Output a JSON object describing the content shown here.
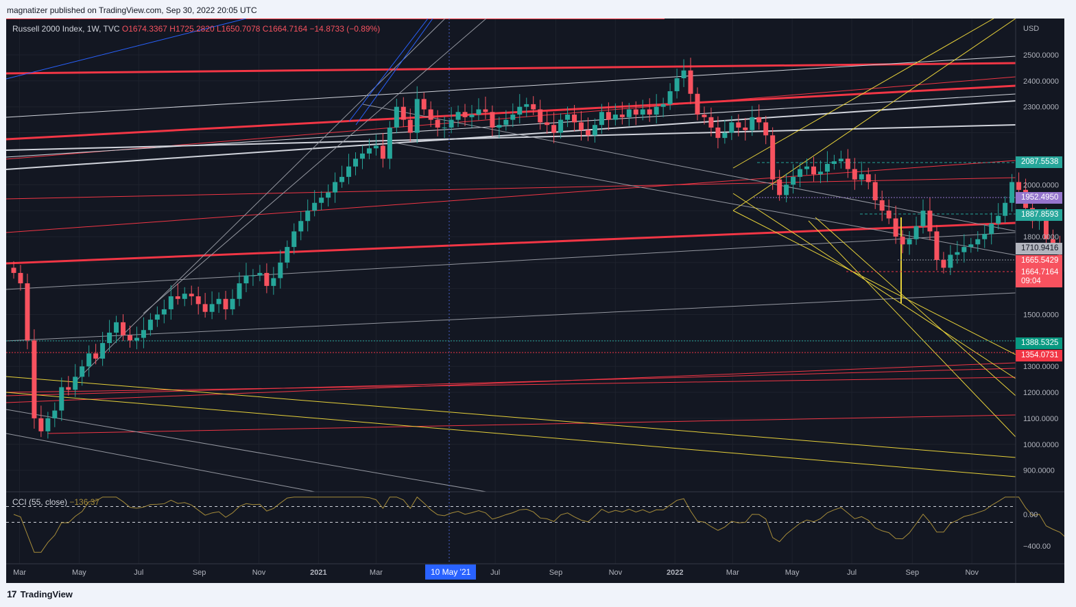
{
  "publisher": "magnatizer published on TradingView.com, Sep 30, 2022 20:05 UTC",
  "legend": {
    "symbol": "Russell 2000 Index, 1W, TVC",
    "open": "O1674.3367",
    "high": "H1725.2820",
    "low": "L1650.7078",
    "close": "C1664.7164",
    "change": "−14.8733 (−0.89%)"
  },
  "cci": {
    "label": "CCI (55, close)",
    "value": "−136.37"
  },
  "axis": {
    "currency": "USD"
  },
  "price_labels": [
    {
      "text": "2087.5538",
      "color": "#26a69a",
      "text_color": "#ffffff"
    },
    {
      "text": "1952.4950",
      "color": "#9575cd",
      "text_color": "#ffffff"
    },
    {
      "text": "1887.8593",
      "color": "#26a69a",
      "text_color": "#ffffff"
    },
    {
      "text": "1710.9416",
      "color": "#b2b5be",
      "text_color": "#131722"
    },
    {
      "text": "1665.5429",
      "color": "#f7525f",
      "text_color": "#ffffff"
    },
    {
      "text": "1664.7164",
      "color": "#f7525f",
      "text_color": "#ffffff"
    },
    {
      "text": "09:04",
      "color": "#f7525f",
      "text_color": "#ffffff"
    },
    {
      "text": "1388.5325",
      "color": "#089981",
      "text_color": "#ffffff"
    },
    {
      "text": "1354.0731",
      "color": "#f23645",
      "text_color": "#ffffff"
    }
  ],
  "crosshair_date": "10 May '21",
  "footer": {
    "brand": "TradingView",
    "logo": "tradingview-logo"
  },
  "chart_data": {
    "type": "candlestick",
    "interval": "1W",
    "x_start": "2020-02-24",
    "y_ticks": [
      2500,
      2400,
      2300,
      2200,
      2100,
      2000,
      1900,
      1800,
      1700,
      1600,
      1500,
      1400,
      1300,
      1200,
      1100,
      1000,
      900
    ],
    "y_tick_labels": [
      "2500.0000",
      "2400.0000",
      "2300.0000",
      "",
      "",
      "2000.0000",
      "",
      "1800.0000",
      "",
      "",
      "1500.0000",
      "",
      "1300.0000",
      "1200.0000",
      "1100.0000",
      "1000.0000",
      "900.0000"
    ],
    "x_tick_labels": [
      "Mar",
      "May",
      "Jul",
      "Sep",
      "Nov",
      "2021",
      "Mar",
      "Jul",
      "Sep",
      "Nov",
      "2022",
      "Mar",
      "May",
      "Jul",
      "Sep",
      "Nov"
    ],
    "x_tick_dates": [
      "2020-03-01",
      "2020-05-01",
      "2020-07-01",
      "2020-09-01",
      "2020-11-01",
      "2021-01-01",
      "2021-03-01",
      "2021-07-01",
      "2021-09-01",
      "2021-11-01",
      "2022-01-01",
      "2022-03-01",
      "2022-05-01",
      "2022-07-01",
      "2022-09-01",
      "2022-11-01"
    ],
    "closes": [
      1660,
      1620,
      1400,
      1100,
      1050,
      1100,
      1130,
      1220,
      1210,
      1260,
      1300,
      1350,
      1330,
      1390,
      1430,
      1470,
      1420,
      1400,
      1410,
      1440,
      1480,
      1500,
      1520,
      1570,
      1560,
      1580,
      1570,
      1540,
      1510,
      1540,
      1560,
      1520,
      1560,
      1620,
      1650,
      1650,
      1660,
      1610,
      1640,
      1700,
      1760,
      1820,
      1860,
      1900,
      1930,
      1950,
      1970,
      2010,
      2030,
      2070,
      2100,
      2120,
      2140,
      2150,
      2100,
      2220,
      2300,
      2250,
      2200,
      2330,
      2290,
      2250,
      2220,
      2220,
      2250,
      2280,
      2260,
      2270,
      2290,
      2280,
      2220,
      2230,
      2250,
      2270,
      2300,
      2310,
      2290,
      2240,
      2230,
      2200,
      2250,
      2270,
      2240,
      2210,
      2190,
      2230,
      2280,
      2250,
      2270,
      2260,
      2290,
      2270,
      2290,
      2270,
      2300,
      2310,
      2360,
      2410,
      2440,
      2350,
      2270,
      2260,
      2220,
      2180,
      2200,
      2240,
      2220,
      2210,
      2260,
      2240,
      2190,
      2020,
      1960,
      2000,
      2030,
      2060,
      2070,
      2040,
      2050,
      2080,
      2090,
      2100,
      2060,
      2020,
      2040,
      2010,
      1940,
      1900,
      1870,
      1800,
      1770,
      1790,
      1840,
      1900,
      1820,
      1710,
      1680,
      1730,
      1740,
      1760,
      1770,
      1790,
      1810,
      1850,
      1880,
      1930,
      2010,
      1980,
      1910,
      1860,
      1880,
      1790,
      1760,
      1730,
      1665
    ]
  }
}
